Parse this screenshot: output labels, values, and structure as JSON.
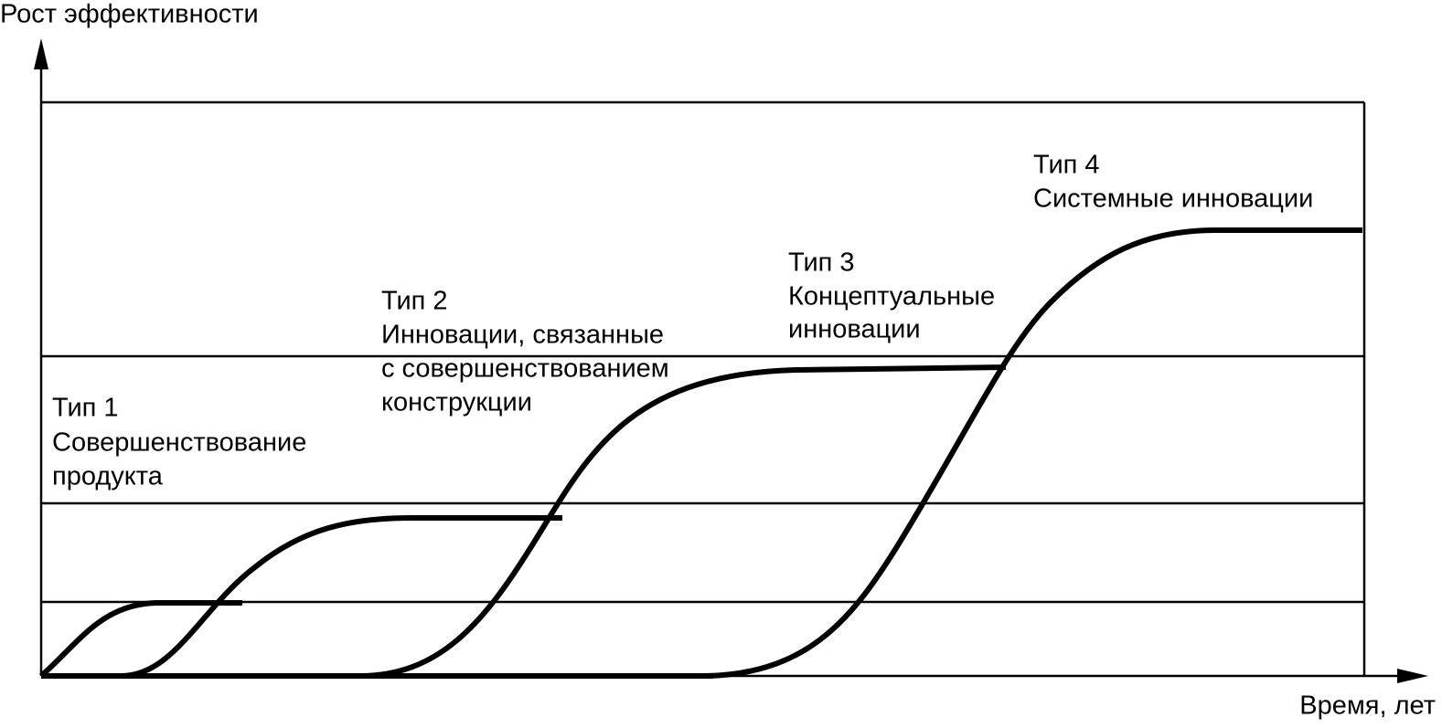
{
  "axes": {
    "y_label": "Рост эффективности",
    "x_label": "Время, лет"
  },
  "curves": [
    {
      "lines": [
        "Тип 1",
        "Совершенствование",
        "продукта"
      ]
    },
    {
      "lines": [
        "Тип 2",
        "Инновации, связанные",
        "с совершенствованием",
        "конструкции"
      ]
    },
    {
      "lines": [
        "Тип 3",
        "Концептуальные",
        "инновации"
      ]
    },
    {
      "lines": [
        "Тип 4",
        "Системные инновации"
      ]
    }
  ]
}
